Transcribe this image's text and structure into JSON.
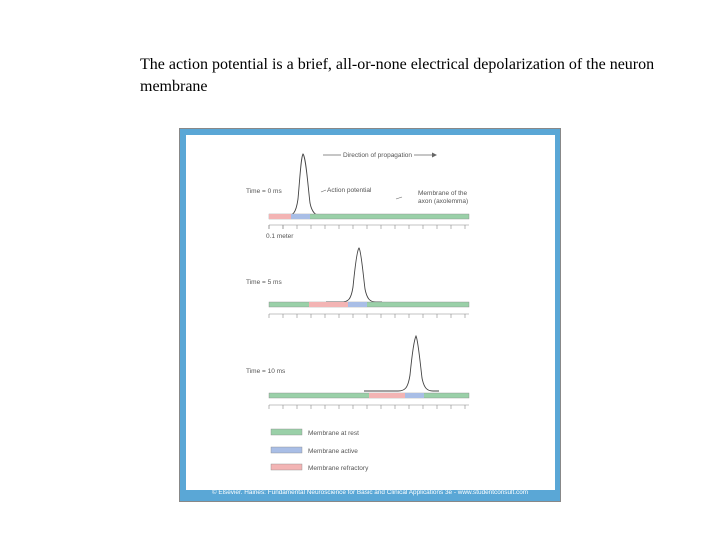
{
  "title": "The action potential is a brief, all-or-none electrical depolarization of the neuron membrane",
  "figure": {
    "direction_label": "Direction of propagation",
    "action_potential_label": "Action potential",
    "membrane_label_line1": "Membrane of the",
    "membrane_label_line2": "axon (axolemma)",
    "scale_label": "0.1 meter",
    "panels": [
      {
        "time_label": "Time = 0 ms"
      },
      {
        "time_label": "Time = 5 ms"
      },
      {
        "time_label": "Time = 10 ms"
      }
    ],
    "legend": [
      {
        "label": "Membrane at rest",
        "color": "#9ad0a8"
      },
      {
        "label": "Membrane active",
        "color": "#a9bee6"
      },
      {
        "label": "Membrane refractory",
        "color": "#f3b4b4"
      }
    ],
    "credit": "© Elsevier. Haines: Fundamental Neuroscience for Basic and Clinical Applications 3e - www.studentconsult.com",
    "colors": {
      "frame": "#5aa7d6",
      "axon_rest": "#9ad0a8",
      "axon_active": "#a9bee6",
      "axon_refractory": "#f3b4b4"
    }
  }
}
